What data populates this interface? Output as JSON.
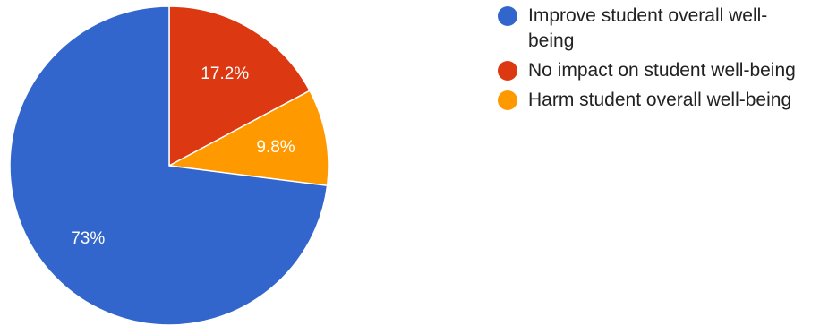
{
  "chart_data": {
    "type": "pie",
    "title": "",
    "slices": [
      {
        "label": "Improve student overall well-being",
        "value": 73,
        "value_label": "73%",
        "color": "#3366cc"
      },
      {
        "label": "No impact on student well-being",
        "value": 17.2,
        "value_label": "17.2%",
        "color": "#dc3912"
      },
      {
        "label": "Harm student overall well-being",
        "value": 9.8,
        "value_label": "9.8%",
        "color": "#ff9900"
      }
    ],
    "legend_position": "right"
  },
  "colors": {
    "blue": "#3366cc",
    "red": "#dc3912",
    "orange": "#ff9900"
  }
}
